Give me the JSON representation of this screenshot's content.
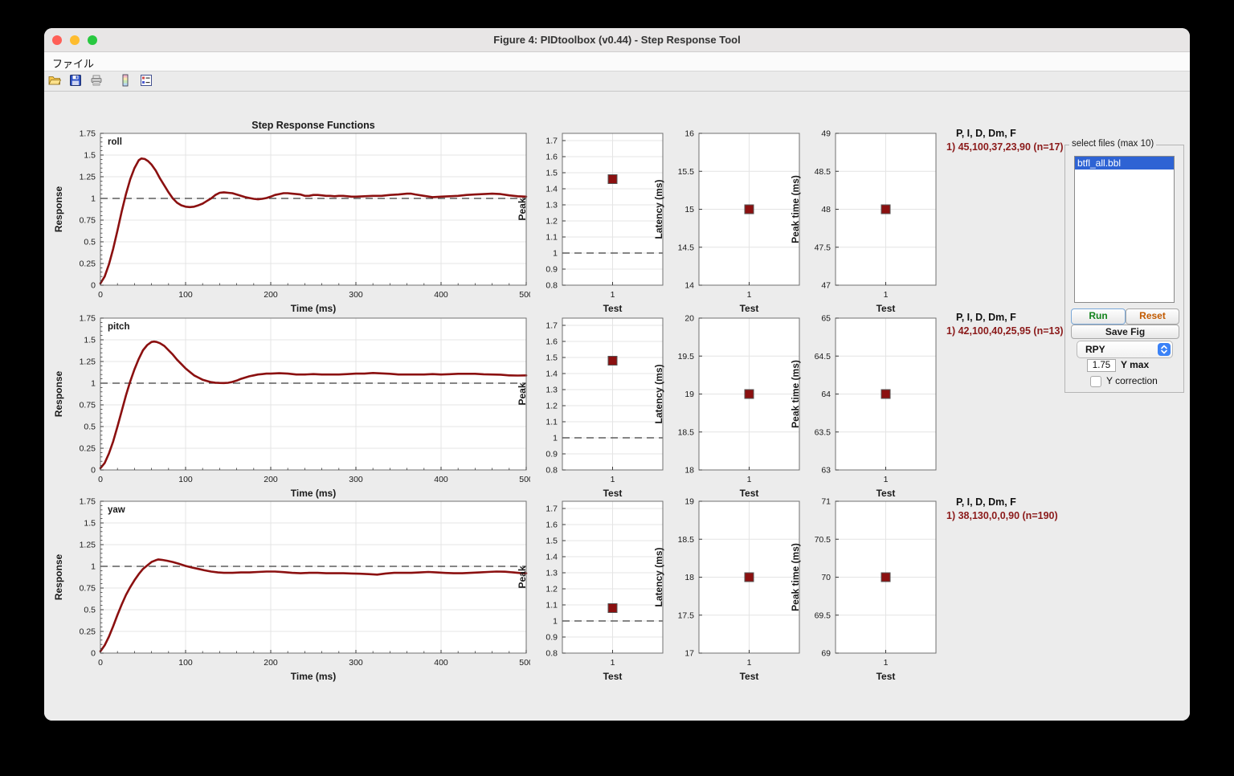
{
  "window": {
    "title": "Figure 4: PIDtoolbox (v0.44) - Step Response Tool",
    "menu": [
      "ファイル"
    ],
    "toolbar_icons": [
      "open-folder-icon",
      "save-icon",
      "print-icon",
      "colorbar-icon",
      "legend-editor-icon"
    ],
    "traffic_lights": [
      "close",
      "minimize",
      "zoom"
    ]
  },
  "colors": {
    "curve": "#8b1010",
    "marker": "#8b1010",
    "grid": "#e4e4e4",
    "axis": "#707070",
    "dashed": "#3c3c3c",
    "pid_text": "#8b1a1a",
    "selection": "#2e63d4",
    "figure_bg": "#ececec"
  },
  "rows": [
    {
      "axis": "roll",
      "pid_header": "P, I, D, Dm, F",
      "pid_value": "1) 45,100,37,23,90  (n=17)"
    },
    {
      "axis": "pitch",
      "pid_header": "P, I, D, Dm, F",
      "pid_value": "1) 42,100,40,25,95  (n=13)"
    },
    {
      "axis": "yaw",
      "pid_header": "P, I, D, Dm, F",
      "pid_value": "1) 38,130,0,0,90  (n=190)"
    }
  ],
  "panel": {
    "title": "select files (max 10)",
    "files": [
      {
        "name": "btfl_all.bbl",
        "selected": true
      }
    ],
    "run_label": "Run",
    "reset_label": "Reset",
    "save_fig_label": "Save Fig",
    "dropdown_value": "RPY",
    "y_max_value": "1.75",
    "y_max_label": "Y max",
    "y_correction_label": "Y correction",
    "y_correction_checked": false
  },
  "chart_data": [
    {
      "id": "roll-step",
      "type": "line",
      "row": "roll",
      "title": "Step Response Functions",
      "corner_label": "roll",
      "xlabel": "Time (ms)",
      "ylabel": "Response",
      "xlim": [
        0,
        500
      ],
      "ylim": [
        0,
        1.75
      ],
      "xticks": [
        0,
        100,
        200,
        300,
        400,
        500
      ],
      "xtick_labels": [
        "0",
        "100",
        "200",
        "300",
        "400",
        "500"
      ],
      "yticks": [
        0,
        0.25,
        0.5,
        0.75,
        1,
        1.25,
        1.5,
        1.75
      ],
      "ytick_labels": [
        "0",
        "0.25",
        "0.5",
        "0.75",
        "1",
        "1.25",
        "1.5",
        "1.75"
      ],
      "grid": true,
      "dashed_y": 1,
      "series": [
        {
          "name": "1",
          "x": [
            0,
            5,
            10,
            15,
            20,
            25,
            30,
            35,
            40,
            45,
            48,
            52,
            56,
            60,
            65,
            70,
            75,
            80,
            85,
            90,
            95,
            100,
            105,
            110,
            115,
            120,
            125,
            130,
            135,
            140,
            145,
            150,
            155,
            160,
            165,
            170,
            175,
            180,
            185,
            190,
            195,
            200,
            205,
            210,
            215,
            220,
            225,
            230,
            235,
            240,
            245,
            250,
            255,
            260,
            265,
            270,
            275,
            280,
            285,
            290,
            295,
            300,
            310,
            320,
            330,
            340,
            350,
            360,
            365,
            370,
            380,
            390,
            400,
            410,
            420,
            430,
            440,
            450,
            460,
            470,
            480,
            490,
            500
          ],
          "y": [
            0.02,
            0.1,
            0.24,
            0.42,
            0.63,
            0.85,
            1.05,
            1.22,
            1.35,
            1.44,
            1.46,
            1.455,
            1.43,
            1.39,
            1.32,
            1.23,
            1.15,
            1.07,
            1.0,
            0.95,
            0.92,
            0.905,
            0.9,
            0.905,
            0.92,
            0.94,
            0.97,
            1.0,
            1.04,
            1.065,
            1.07,
            1.065,
            1.06,
            1.045,
            1.03,
            1.015,
            1.005,
            0.995,
            0.99,
            0.995,
            1.005,
            1.02,
            1.04,
            1.05,
            1.06,
            1.06,
            1.055,
            1.05,
            1.045,
            1.03,
            1.03,
            1.04,
            1.04,
            1.035,
            1.03,
            1.03,
            1.025,
            1.03,
            1.03,
            1.025,
            1.02,
            1.02,
            1.025,
            1.03,
            1.03,
            1.04,
            1.045,
            1.055,
            1.055,
            1.045,
            1.03,
            1.015,
            1.02,
            1.025,
            1.03,
            1.04,
            1.045,
            1.05,
            1.055,
            1.05,
            1.035,
            1.025,
            1.02
          ]
        }
      ]
    },
    {
      "id": "roll-peak",
      "type": "scatter",
      "row": "roll",
      "xlabel": "Test",
      "ylabel": "Peak",
      "xlim": [
        0.25,
        1.75
      ],
      "ylim": [
        0.8,
        1.745
      ],
      "xticks": [
        1
      ],
      "xtick_labels": [
        "1"
      ],
      "yticks": [
        0.8,
        0.9,
        1,
        1.1,
        1.2,
        1.3,
        1.4,
        1.5,
        1.6,
        1.7
      ],
      "ytick_labels": [
        "0.8",
        "0.9",
        "1",
        "1.1",
        "1.2",
        "1.3",
        "1.4",
        "1.5",
        "1.6",
        "1.7"
      ],
      "grid": true,
      "dashed_y": 1,
      "points": [
        {
          "x": 1,
          "y": 1.46
        }
      ]
    },
    {
      "id": "roll-latency",
      "type": "scatter",
      "row": "roll",
      "xlabel": "Test",
      "ylabel": "Latency (ms)",
      "xlim": [
        0.25,
        1.75
      ],
      "ylim": [
        14,
        16
      ],
      "xticks": [
        1
      ],
      "xtick_labels": [
        "1"
      ],
      "yticks": [
        14,
        14.5,
        15,
        15.5,
        16
      ],
      "ytick_labels": [
        "14",
        "14.5",
        "15",
        "15.5",
        "16"
      ],
      "grid": true,
      "points": [
        {
          "x": 1,
          "y": 15
        }
      ]
    },
    {
      "id": "roll-peaktime",
      "type": "scatter",
      "row": "roll",
      "xlabel": "Test",
      "ylabel": "Peak time (ms)",
      "xlim": [
        0.25,
        1.75
      ],
      "ylim": [
        47,
        49
      ],
      "xticks": [
        1
      ],
      "xtick_labels": [
        "1"
      ],
      "yticks": [
        47,
        47.5,
        48,
        48.5,
        49
      ],
      "ytick_labels": [
        "47",
        "47.5",
        "48",
        "48.5",
        "49"
      ],
      "grid": true,
      "points": [
        {
          "x": 1,
          "y": 48
        }
      ]
    },
    {
      "id": "pitch-step",
      "type": "line",
      "row": "pitch",
      "corner_label": "pitch",
      "xlabel": "Time (ms)",
      "ylabel": "Response",
      "xlim": [
        0,
        500
      ],
      "ylim": [
        0,
        1.75
      ],
      "xticks": [
        0,
        100,
        200,
        300,
        400,
        500
      ],
      "xtick_labels": [
        "0",
        "100",
        "200",
        "300",
        "400",
        "500"
      ],
      "yticks": [
        0,
        0.25,
        0.5,
        0.75,
        1,
        1.25,
        1.5,
        1.75
      ],
      "ytick_labels": [
        "0",
        "0.25",
        "0.5",
        "0.75",
        "1",
        "1.25",
        "1.5",
        "1.75"
      ],
      "grid": true,
      "dashed_y": 1,
      "series": [
        {
          "name": "1",
          "x": [
            0,
            5,
            10,
            15,
            20,
            25,
            30,
            35,
            40,
            45,
            50,
            55,
            60,
            63,
            66,
            70,
            75,
            80,
            85,
            90,
            95,
            100,
            105,
            110,
            115,
            120,
            125,
            130,
            135,
            140,
            145,
            150,
            155,
            160,
            165,
            170,
            175,
            180,
            185,
            190,
            195,
            200,
            210,
            220,
            230,
            240,
            250,
            260,
            270,
            280,
            290,
            300,
            310,
            320,
            330,
            340,
            350,
            360,
            370,
            380,
            390,
            400,
            410,
            420,
            430,
            440,
            450,
            460,
            470,
            480,
            490,
            500
          ],
          "y": [
            0.02,
            0.08,
            0.19,
            0.33,
            0.5,
            0.68,
            0.86,
            1.02,
            1.16,
            1.28,
            1.38,
            1.44,
            1.475,
            1.48,
            1.475,
            1.46,
            1.43,
            1.38,
            1.33,
            1.27,
            1.22,
            1.17,
            1.13,
            1.09,
            1.065,
            1.04,
            1.025,
            1.012,
            1.006,
            1.003,
            1.002,
            1.005,
            1.015,
            1.03,
            1.05,
            1.065,
            1.08,
            1.09,
            1.1,
            1.105,
            1.11,
            1.11,
            1.115,
            1.11,
            1.1,
            1.1,
            1.105,
            1.1,
            1.1,
            1.1,
            1.105,
            1.11,
            1.11,
            1.118,
            1.113,
            1.108,
            1.1,
            1.1,
            1.1,
            1.1,
            1.105,
            1.1,
            1.104,
            1.108,
            1.108,
            1.108,
            1.103,
            1.1,
            1.098,
            1.09,
            1.088,
            1.09
          ]
        }
      ]
    },
    {
      "id": "pitch-peak",
      "type": "scatter",
      "row": "pitch",
      "xlabel": "Test",
      "ylabel": "Peak",
      "xlim": [
        0.25,
        1.75
      ],
      "ylim": [
        0.8,
        1.745
      ],
      "xticks": [
        1
      ],
      "xtick_labels": [
        "1"
      ],
      "yticks": [
        0.8,
        0.9,
        1,
        1.1,
        1.2,
        1.3,
        1.4,
        1.5,
        1.6,
        1.7
      ],
      "ytick_labels": [
        "0.8",
        "0.9",
        "1",
        "1.1",
        "1.2",
        "1.3",
        "1.4",
        "1.5",
        "1.6",
        "1.7"
      ],
      "grid": true,
      "dashed_y": 1,
      "points": [
        {
          "x": 1,
          "y": 1.48
        }
      ]
    },
    {
      "id": "pitch-latency",
      "type": "scatter",
      "row": "pitch",
      "xlabel": "Test",
      "ylabel": "Latency (ms)",
      "xlim": [
        0.25,
        1.75
      ],
      "ylim": [
        18,
        20
      ],
      "xticks": [
        1
      ],
      "xtick_labels": [
        "1"
      ],
      "yticks": [
        18,
        18.5,
        19,
        19.5,
        20
      ],
      "ytick_labels": [
        "18",
        "18.5",
        "19",
        "19.5",
        "20"
      ],
      "grid": true,
      "points": [
        {
          "x": 1,
          "y": 19
        }
      ]
    },
    {
      "id": "pitch-peaktime",
      "type": "scatter",
      "row": "pitch",
      "xlabel": "Test",
      "ylabel": "Peak time (ms)",
      "xlim": [
        0.25,
        1.75
      ],
      "ylim": [
        63,
        65
      ],
      "xticks": [
        1
      ],
      "xtick_labels": [
        "1"
      ],
      "yticks": [
        63,
        63.5,
        64,
        64.5,
        65
      ],
      "ytick_labels": [
        "63",
        "63.5",
        "64",
        "64.5",
        "65"
      ],
      "grid": true,
      "points": [
        {
          "x": 1,
          "y": 64
        }
      ]
    },
    {
      "id": "yaw-step",
      "type": "line",
      "row": "yaw",
      "corner_label": "yaw",
      "xlabel": "Time (ms)",
      "ylabel": "Response",
      "xlim": [
        0,
        500
      ],
      "ylim": [
        0,
        1.75
      ],
      "xticks": [
        0,
        100,
        200,
        300,
        400,
        500
      ],
      "xtick_labels": [
        "0",
        "100",
        "200",
        "300",
        "400",
        "500"
      ],
      "yticks": [
        0,
        0.25,
        0.5,
        0.75,
        1,
        1.25,
        1.5,
        1.75
      ],
      "ytick_labels": [
        "0",
        "0.25",
        "0.5",
        "0.75",
        "1",
        "1.25",
        "1.5",
        "1.75"
      ],
      "grid": true,
      "dashed_y": 1,
      "series": [
        {
          "name": "1",
          "x": [
            0,
            5,
            10,
            15,
            20,
            25,
            30,
            35,
            40,
            45,
            50,
            55,
            60,
            65,
            68,
            72,
            78,
            85,
            92,
            100,
            108,
            115,
            122,
            130,
            138,
            145,
            155,
            165,
            175,
            185,
            195,
            205,
            215,
            225,
            235,
            245,
            255,
            265,
            275,
            285,
            295,
            305,
            315,
            325,
            335,
            345,
            355,
            365,
            375,
            385,
            395,
            405,
            415,
            425,
            435,
            445,
            455,
            465,
            475,
            485,
            495,
            500
          ],
          "y": [
            0.02,
            0.09,
            0.19,
            0.31,
            0.44,
            0.56,
            0.67,
            0.76,
            0.84,
            0.91,
            0.97,
            1.01,
            1.05,
            1.07,
            1.08,
            1.075,
            1.065,
            1.05,
            1.03,
            1.005,
            0.985,
            0.97,
            0.955,
            0.94,
            0.93,
            0.925,
            0.925,
            0.93,
            0.93,
            0.935,
            0.94,
            0.94,
            0.933,
            0.925,
            0.92,
            0.925,
            0.925,
            0.92,
            0.92,
            0.92,
            0.918,
            0.915,
            0.91,
            0.905,
            0.918,
            0.925,
            0.925,
            0.925,
            0.93,
            0.935,
            0.93,
            0.924,
            0.92,
            0.92,
            0.925,
            0.93,
            0.935,
            0.94,
            0.938,
            0.93,
            0.92,
            0.92
          ]
        }
      ]
    },
    {
      "id": "yaw-peak",
      "type": "scatter",
      "row": "yaw",
      "xlabel": "Test",
      "ylabel": "Peak",
      "xlim": [
        0.25,
        1.75
      ],
      "ylim": [
        0.8,
        1.745
      ],
      "xticks": [
        1
      ],
      "xtick_labels": [
        "1"
      ],
      "yticks": [
        0.8,
        0.9,
        1,
        1.1,
        1.2,
        1.3,
        1.4,
        1.5,
        1.6,
        1.7
      ],
      "ytick_labels": [
        "0.8",
        "0.9",
        "1",
        "1.1",
        "1.2",
        "1.3",
        "1.4",
        "1.5",
        "1.6",
        "1.7"
      ],
      "grid": true,
      "dashed_y": 1,
      "points": [
        {
          "x": 1,
          "y": 1.08
        }
      ]
    },
    {
      "id": "yaw-latency",
      "type": "scatter",
      "row": "yaw",
      "xlabel": "Test",
      "ylabel": "Latency (ms)",
      "xlim": [
        0.25,
        1.75
      ],
      "ylim": [
        17,
        19
      ],
      "xticks": [
        1
      ],
      "xtick_labels": [
        "1"
      ],
      "yticks": [
        17,
        17.5,
        18,
        18.5,
        19
      ],
      "ytick_labels": [
        "17",
        "17.5",
        "18",
        "18.5",
        "19"
      ],
      "grid": true,
      "points": [
        {
          "x": 1,
          "y": 18
        }
      ]
    },
    {
      "id": "yaw-peaktime",
      "type": "scatter",
      "row": "yaw",
      "xlabel": "Test",
      "ylabel": "Peak time (ms)",
      "xlim": [
        0.25,
        1.75
      ],
      "ylim": [
        69,
        71
      ],
      "xticks": [
        1
      ],
      "xtick_labels": [
        "1"
      ],
      "yticks": [
        69,
        69.5,
        70,
        70.5,
        71
      ],
      "ytick_labels": [
        "69",
        "69.5",
        "70",
        "70.5",
        "71"
      ],
      "grid": true,
      "points": [
        {
          "x": 1,
          "y": 70
        }
      ]
    }
  ]
}
